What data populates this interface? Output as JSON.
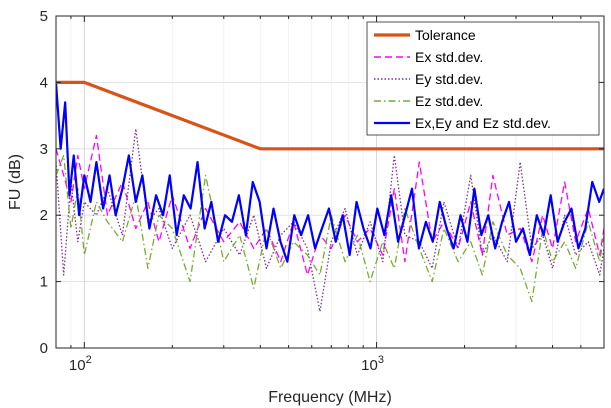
{
  "chart_data": {
    "type": "line",
    "xlabel": "Frequency (MHz)",
    "ylabel": "FU (dB)",
    "xscale": "log",
    "xlim": [
      80,
      6000
    ],
    "ylim": [
      0,
      5
    ],
    "grid": true,
    "legend_position": "top-right",
    "x_tick_labels": [
      {
        "base": "10",
        "exp": "2"
      },
      {
        "base": "10",
        "exp": "3"
      }
    ],
    "y_ticks": [
      0,
      1,
      2,
      3,
      4,
      5
    ],
    "series": [
      {
        "name": "Tolerance",
        "color": "#D95319",
        "style": "solid",
        "x": [
          80,
          100,
          400,
          6000
        ],
        "y": [
          4,
          4,
          3,
          3
        ]
      },
      {
        "name": "Ex std.dev.",
        "color": "#FF00FF",
        "style": "dashed",
        "x": [
          80,
          85,
          90,
          95,
          100,
          110,
          120,
          135,
          150,
          165,
          180,
          200,
          230,
          260,
          300,
          340,
          380,
          420,
          470,
          520,
          580,
          640,
          700,
          780,
          860,
          950,
          1050,
          1150,
          1250,
          1400,
          1550,
          1700,
          1900,
          2100,
          2300,
          2500,
          2800,
          3100,
          3400,
          3700,
          4000,
          4400,
          4800,
          5300,
          5800,
          6000
        ],
        "y": [
          3.0,
          2.6,
          2.2,
          2.9,
          2.4,
          3.2,
          2.0,
          2.5,
          1.8,
          2.2,
          1.6,
          2.3,
          1.5,
          2.1,
          1.6,
          1.9,
          1.5,
          1.8,
          1.3,
          1.9,
          1.1,
          1.7,
          1.5,
          2.0,
          1.6,
          1.8,
          1.4,
          2.4,
          1.3,
          2.8,
          1.6,
          1.9,
          1.5,
          2.2,
          1.4,
          2.6,
          1.7,
          1.8,
          1.3,
          2.0,
          1.5,
          2.5,
          1.6,
          2.1,
          1.4,
          1.8
        ]
      },
      {
        "name": "Ey std.dev.",
        "color": "#7E2F8E",
        "style": "dotted",
        "x": [
          80,
          85,
          90,
          95,
          100,
          110,
          120,
          135,
          150,
          165,
          180,
          200,
          230,
          260,
          300,
          340,
          380,
          420,
          470,
          520,
          580,
          640,
          700,
          780,
          860,
          950,
          1050,
          1150,
          1250,
          1400,
          1550,
          1700,
          1900,
          2100,
          2300,
          2500,
          2800,
          3100,
          3400,
          3700,
          4000,
          4400,
          4800,
          5300,
          5800,
          6000
        ],
        "y": [
          2.8,
          1.1,
          2.5,
          1.6,
          2.2,
          2.0,
          2.4,
          1.7,
          3.3,
          1.9,
          2.1,
          1.5,
          2.0,
          1.3,
          1.8,
          1.4,
          2.0,
          1.2,
          1.7,
          1.9,
          1.5,
          0.55,
          1.6,
          2.1,
          1.4,
          1.9,
          1.3,
          2.9,
          1.7,
          1.6,
          1.2,
          2.2,
          1.5,
          2.6,
          1.4,
          1.7,
          1.3,
          2.8,
          1.5,
          1.7,
          1.2,
          2.0,
          1.4,
          1.6,
          1.1,
          1.5
        ]
      },
      {
        "name": "Ez std.dev.",
        "color": "#77AC30",
        "style": "dashdot",
        "x": [
          80,
          85,
          90,
          95,
          100,
          110,
          120,
          135,
          150,
          165,
          180,
          200,
          230,
          260,
          300,
          340,
          380,
          420,
          470,
          520,
          580,
          640,
          700,
          780,
          860,
          950,
          1050,
          1150,
          1250,
          1400,
          1550,
          1700,
          1900,
          2100,
          2300,
          2500,
          2800,
          3100,
          3400,
          3700,
          4000,
          4400,
          4800,
          5300,
          5800,
          6000
        ],
        "y": [
          2.6,
          2.9,
          1.8,
          2.4,
          1.4,
          2.2,
          1.9,
          1.6,
          2.3,
          1.2,
          2.0,
          1.8,
          1.0,
          2.6,
          1.3,
          1.7,
          0.9,
          1.8,
          1.2,
          1.6,
          1.4,
          1.1,
          2.0,
          1.3,
          1.7,
          1.0,
          1.6,
          1.2,
          2.1,
          1.5,
          1.0,
          1.8,
          1.3,
          1.6,
          1.1,
          1.9,
          1.4,
          1.2,
          0.7,
          1.8,
          1.3,
          1.6,
          1.2,
          1.9,
          1.3,
          1.7
        ]
      },
      {
        "name": "Ex,Ey and Ez std.dev.",
        "color": "#0000FF",
        "style": "solid",
        "x": [
          80,
          83,
          86,
          89,
          92,
          96,
          100,
          105,
          110,
          116,
          122,
          128,
          135,
          142,
          150,
          158,
          167,
          176,
          186,
          196,
          207,
          219,
          231,
          244,
          258,
          272,
          287,
          303,
          320,
          338,
          357,
          377,
          398,
          420,
          444,
          469,
          495,
          523,
          552,
          583,
          616,
          650,
          687,
          725,
          766,
          809,
          854,
          902,
          953,
          1006,
          1063,
          1122,
          1185,
          1252,
          1322,
          1396,
          1475,
          1557,
          1645,
          1737,
          1835,
          1938,
          2046,
          2161,
          2283,
          2411,
          2546,
          2689,
          2840,
          3000,
          3168,
          3346,
          3534,
          3732,
          3942,
          4163,
          4397,
          4643,
          4904,
          5179,
          5470,
          5777,
          6000
        ],
        "y": [
          4.0,
          3.0,
          3.7,
          2.3,
          2.9,
          2.0,
          2.6,
          2.2,
          2.8,
          2.1,
          2.6,
          2.0,
          2.4,
          2.9,
          2.2,
          2.6,
          1.8,
          2.3,
          2.0,
          2.6,
          1.7,
          2.3,
          2.1,
          2.8,
          1.8,
          2.2,
          1.6,
          2.0,
          1.9,
          2.3,
          1.7,
          2.5,
          2.2,
          1.5,
          2.1,
          1.6,
          1.3,
          2.0,
          1.7,
          2.0,
          1.5,
          1.8,
          2.1,
          1.6,
          2.0,
          1.4,
          2.2,
          1.8,
          1.5,
          2.1,
          1.7,
          2.3,
          1.6,
          2.0,
          2.4,
          1.5,
          1.9,
          1.6,
          2.2,
          1.8,
          1.5,
          2.0,
          1.6,
          2.4,
          1.7,
          2.0,
          1.5,
          1.9,
          2.2,
          1.6,
          1.8,
          1.4,
          2.0,
          1.7,
          2.3,
          1.6,
          1.9,
          2.1,
          1.5,
          1.8,
          2.5,
          2.2,
          2.4
        ]
      }
    ]
  }
}
